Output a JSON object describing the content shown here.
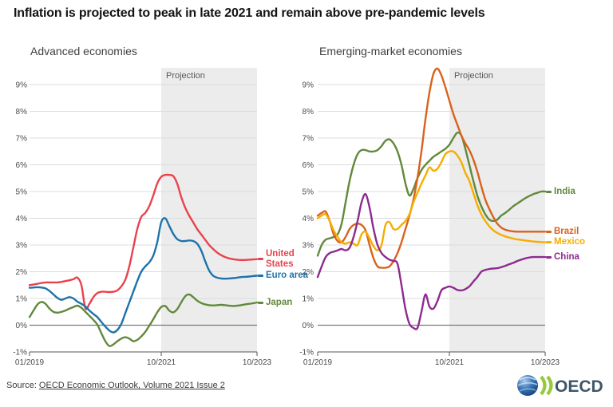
{
  "title": "Inflation is projected to peak in late 2021 and remain above pre-pandemic levels",
  "source": {
    "prefix": "Source:",
    "link_text": "OECD Economic Outlook, Volume 2021 Issue 2"
  },
  "logo": {
    "text": "OECD",
    "globe_icon": "globe-icon",
    "chevrons_icon": "double-chevron-icon"
  },
  "colors": {
    "grid": "#dcdcdc",
    "zero_line": "#787878",
    "axis_line": "#555555",
    "tick": "#555555",
    "axis_text": "#4a4a4a",
    "projection_fill": "#ececec",
    "projection_text": "#595959"
  },
  "chart_data": [
    {
      "type": "line",
      "title": "Advanced economies",
      "projection_label": "Projection",
      "x_unit": "months since 2019-01",
      "x_range": [
        0,
        57
      ],
      "x_ticks": [
        {
          "m": 0,
          "label": "01/2019"
        },
        {
          "m": 33,
          "label": "10/2021"
        },
        {
          "m": 57,
          "label": "10/2023"
        }
      ],
      "projection_start_m": 33,
      "ylim": [
        -1,
        9.6
      ],
      "y_ticks": [
        9,
        8,
        7,
        6,
        5,
        4,
        3,
        2,
        1,
        0,
        -1
      ],
      "y_tick_suffix": "%",
      "grid": true,
      "legend_position": "right-of-line-end",
      "series": [
        {
          "name": "United States",
          "label": "United\nStates",
          "color": "#e8434c",
          "values": [
            1.5,
            1.52,
            1.55,
            1.58,
            1.6,
            1.6,
            1.6,
            1.6,
            1.62,
            1.65,
            1.68,
            1.72,
            1.78,
            1.5,
            0.63,
            0.8,
            1.05,
            1.2,
            1.25,
            1.25,
            1.24,
            1.25,
            1.3,
            1.45,
            1.7,
            2.2,
            2.9,
            3.6,
            4.05,
            4.2,
            4.45,
            4.85,
            5.3,
            5.55,
            5.62,
            5.62,
            5.58,
            5.3,
            4.8,
            4.4,
            4.1,
            3.85,
            3.6,
            3.4,
            3.2,
            3.0,
            2.85,
            2.72,
            2.62,
            2.55,
            2.5,
            2.47,
            2.45,
            2.44,
            2.44,
            2.45,
            2.46,
            2.47
          ]
        },
        {
          "name": "Euro area",
          "label": "Euro area",
          "color": "#1e72ab",
          "values": [
            1.4,
            1.41,
            1.42,
            1.41,
            1.38,
            1.28,
            1.15,
            1.02,
            0.95,
            1.0,
            1.05,
            1.0,
            0.88,
            0.8,
            0.7,
            0.55,
            0.42,
            0.3,
            0.12,
            -0.05,
            -0.2,
            -0.27,
            -0.18,
            0.05,
            0.45,
            0.85,
            1.25,
            1.65,
            2.0,
            2.2,
            2.35,
            2.6,
            3.1,
            3.85,
            4.0,
            3.72,
            3.42,
            3.22,
            3.15,
            3.15,
            3.17,
            3.15,
            3.05,
            2.8,
            2.4,
            2.05,
            1.85,
            1.78,
            1.75,
            1.74,
            1.75,
            1.76,
            1.78,
            1.8,
            1.81,
            1.82,
            1.84,
            1.85
          ]
        },
        {
          "name": "Japan",
          "label": "Japan",
          "color": "#61893a",
          "values": [
            0.3,
            0.55,
            0.78,
            0.87,
            0.8,
            0.62,
            0.5,
            0.47,
            0.5,
            0.55,
            0.62,
            0.68,
            0.73,
            0.65,
            0.5,
            0.35,
            0.2,
            0.02,
            -0.3,
            -0.6,
            -0.78,
            -0.72,
            -0.6,
            -0.5,
            -0.45,
            -0.5,
            -0.6,
            -0.55,
            -0.42,
            -0.25,
            -0.02,
            0.22,
            0.48,
            0.68,
            0.72,
            0.55,
            0.48,
            0.6,
            0.85,
            1.08,
            1.15,
            1.05,
            0.92,
            0.83,
            0.78,
            0.75,
            0.74,
            0.75,
            0.76,
            0.75,
            0.73,
            0.72,
            0.73,
            0.75,
            0.78,
            0.8,
            0.82,
            0.85
          ]
        }
      ]
    },
    {
      "type": "line",
      "title": "Emerging-market economies",
      "projection_label": "Projection",
      "x_unit": "months since 2019-01",
      "x_range": [
        0,
        57
      ],
      "x_ticks": [
        {
          "m": 0,
          "label": "01/2019"
        },
        {
          "m": 33,
          "label": "10/2021"
        },
        {
          "m": 57,
          "label": "10/2023"
        }
      ],
      "projection_start_m": 33,
      "ylim": [
        -1,
        9.6
      ],
      "y_ticks": [
        9,
        8,
        7,
        6,
        5,
        4,
        3,
        2,
        1,
        0,
        -1
      ],
      "y_tick_suffix": "%",
      "grid": true,
      "legend_position": "right-of-line-end",
      "series": [
        {
          "name": "India",
          "label": "India",
          "color": "#61893a",
          "values": [
            2.6,
            3.0,
            3.2,
            3.25,
            3.3,
            3.4,
            3.8,
            4.6,
            5.4,
            6.0,
            6.4,
            6.55,
            6.55,
            6.5,
            6.5,
            6.55,
            6.7,
            6.9,
            6.95,
            6.8,
            6.5,
            6.0,
            5.3,
            4.85,
            5.1,
            5.5,
            5.8,
            6.0,
            6.15,
            6.3,
            6.4,
            6.5,
            6.6,
            6.75,
            7.0,
            7.2,
            7.1,
            6.6,
            6.0,
            5.4,
            4.85,
            4.45,
            4.15,
            3.95,
            3.9,
            3.95,
            4.1,
            4.2,
            4.32,
            4.45,
            4.55,
            4.65,
            4.75,
            4.83,
            4.9,
            4.95,
            5.0,
            5.0
          ]
        },
        {
          "name": "Brazil",
          "label": "Brazil",
          "color": "#d9621c",
          "values": [
            4.1,
            4.2,
            4.25,
            3.9,
            3.4,
            3.15,
            3.1,
            3.3,
            3.6,
            3.75,
            3.8,
            3.75,
            3.55,
            3.0,
            2.5,
            2.2,
            2.15,
            2.15,
            2.2,
            2.4,
            2.7,
            3.1,
            3.6,
            4.1,
            4.7,
            5.5,
            6.5,
            7.7,
            8.7,
            9.4,
            9.6,
            9.35,
            8.9,
            8.4,
            7.9,
            7.5,
            7.1,
            6.8,
            6.55,
            6.2,
            5.75,
            5.2,
            4.7,
            4.35,
            4.05,
            3.8,
            3.65,
            3.57,
            3.53,
            3.51,
            3.5,
            3.5,
            3.5,
            3.5,
            3.5,
            3.5,
            3.5,
            3.5
          ]
        },
        {
          "name": "Mexico",
          "label": "Mexico",
          "color": "#f5ae00",
          "values": [
            4.0,
            4.1,
            4.15,
            3.9,
            3.55,
            3.3,
            3.1,
            3.05,
            3.1,
            3.05,
            3.0,
            3.4,
            3.5,
            3.25,
            2.95,
            2.8,
            3.0,
            3.75,
            3.85,
            3.6,
            3.6,
            3.75,
            3.9,
            4.15,
            4.6,
            4.95,
            5.3,
            5.6,
            5.9,
            5.78,
            5.85,
            6.1,
            6.4,
            6.5,
            6.5,
            6.35,
            6.1,
            5.7,
            5.4,
            4.95,
            4.5,
            4.15,
            3.9,
            3.7,
            3.55,
            3.45,
            3.38,
            3.32,
            3.28,
            3.24,
            3.21,
            3.19,
            3.17,
            3.15,
            3.13,
            3.12,
            3.11,
            3.1
          ]
        },
        {
          "name": "China",
          "label": "China",
          "color": "#8e2a8f",
          "values": [
            1.8,
            2.2,
            2.55,
            2.7,
            2.75,
            2.8,
            2.85,
            2.8,
            2.9,
            3.3,
            3.9,
            4.6,
            4.9,
            4.4,
            3.6,
            3.0,
            2.7,
            2.55,
            2.45,
            2.4,
            2.3,
            1.5,
            0.6,
            0.05,
            -0.1,
            -0.1,
            0.5,
            1.15,
            0.7,
            0.62,
            0.9,
            1.3,
            1.4,
            1.45,
            1.4,
            1.32,
            1.3,
            1.35,
            1.45,
            1.63,
            1.8,
            2.0,
            2.07,
            2.1,
            2.12,
            2.13,
            2.17,
            2.22,
            2.28,
            2.33,
            2.4,
            2.45,
            2.5,
            2.53,
            2.55,
            2.55,
            2.55,
            2.55
          ]
        }
      ]
    }
  ]
}
